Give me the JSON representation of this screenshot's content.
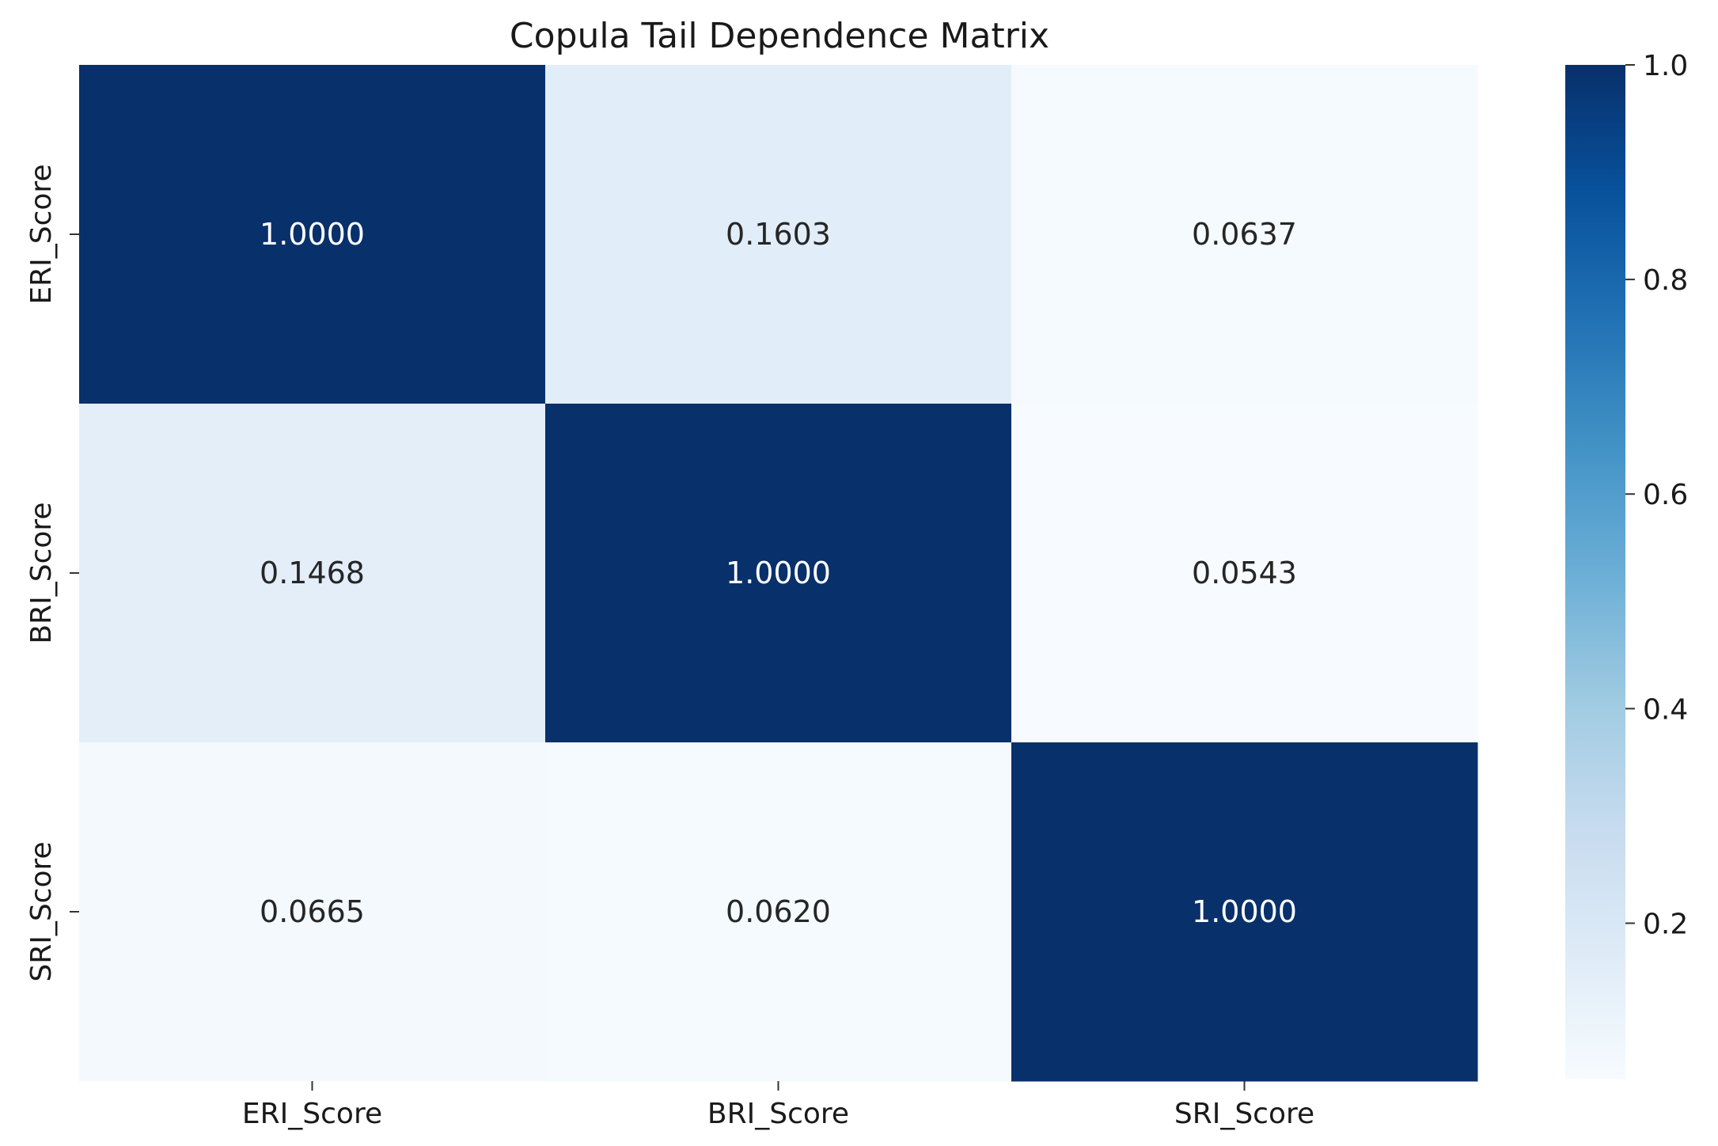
{
  "chart_data": {
    "type": "heatmap",
    "title": "Copula Tail Dependence Matrix",
    "x_labels": [
      "ERI_Score",
      "BRI_Score",
      "SRI_Score"
    ],
    "y_labels": [
      "ERI_Score",
      "BRI_Score",
      "SRI_Score"
    ],
    "values": [
      [
        1.0,
        0.1603,
        0.0637
      ],
      [
        0.1468,
        1.0,
        0.0543
      ],
      [
        0.0665,
        0.062,
        1.0
      ]
    ],
    "cell_labels": [
      [
        "1.0000",
        "0.1603",
        "0.0637"
      ],
      [
        "0.1468",
        "1.0000",
        "0.0543"
      ],
      [
        "0.0665",
        "0.0620",
        "1.0000"
      ]
    ],
    "colormap": "Blues",
    "color_range": [
      0.0543,
      1.0
    ],
    "colorbar": {
      "ticks": [
        0.2,
        0.4,
        0.6,
        0.8,
        1.0
      ],
      "tick_labels": [
        "0.2",
        "0.4",
        "0.6",
        "0.8",
        "1.0"
      ],
      "location": "right"
    },
    "xlabel": "",
    "ylabel": ""
  }
}
